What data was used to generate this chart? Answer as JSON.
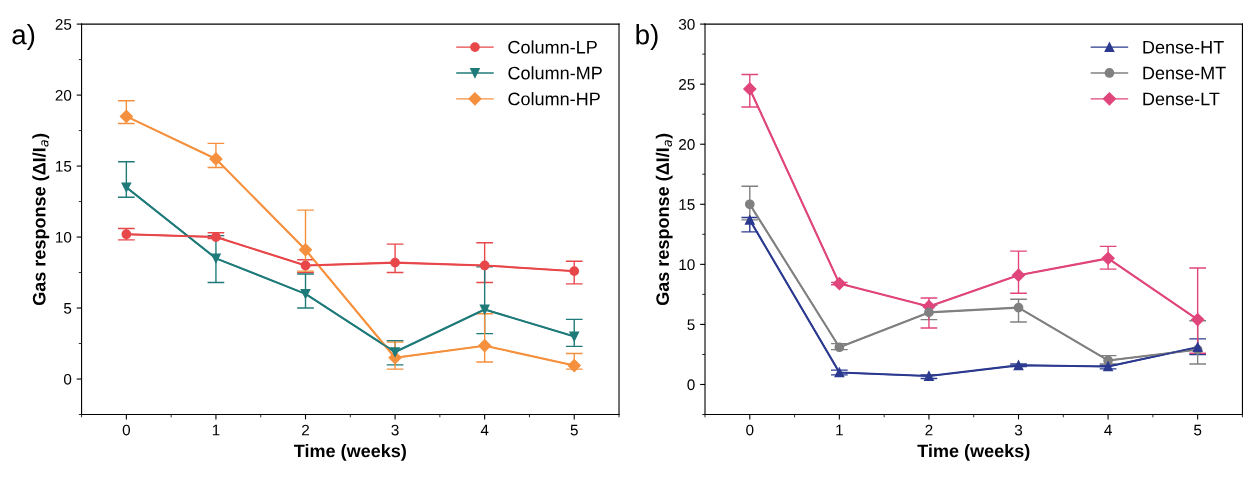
{
  "chart_data": [
    {
      "type": "line",
      "title": "a)",
      "xlabel": "Time (weeks)",
      "ylabel": "Gas response (ΔI/I$_{a}$)",
      "x": [
        0,
        1,
        2,
        3,
        4,
        5
      ],
      "xlim": [
        -0.5,
        5.5
      ],
      "xticks": [
        0,
        1,
        2,
        3,
        4,
        5
      ],
      "ylim": [
        -2.5,
        25
      ],
      "yticks": [
        0,
        5,
        10,
        15,
        20,
        25
      ],
      "legend": "top right",
      "grid": false,
      "series": [
        {
          "name": "Column-LP",
          "color": "#e8474a",
          "marker": "circle",
          "values": [
            10.2,
            10.0,
            8.0,
            8.2,
            8.0,
            7.6
          ],
          "errors": [
            [
              9.8,
              10.6
            ],
            [
              9.9,
              10.3
            ],
            [
              7.5,
              8.4
            ],
            [
              7.5,
              9.5
            ],
            [
              6.8,
              9.6
            ],
            [
              6.7,
              8.3
            ]
          ]
        },
        {
          "name": "Column-MP",
          "color": "#1f7a7a",
          "marker": "triangle_down",
          "values": [
            13.5,
            8.5,
            6.0,
            1.9,
            4.9,
            3.0
          ],
          "errors": [
            [
              12.8,
              15.3
            ],
            [
              6.8,
              10.1
            ],
            [
              5.0,
              7.4
            ],
            [
              1.0,
              2.7
            ],
            [
              3.2,
              7.9
            ],
            [
              2.3,
              4.2
            ]
          ]
        },
        {
          "name": "Column-HP",
          "color": "#f5913e",
          "marker": "diamond",
          "values": [
            18.5,
            15.5,
            9.1,
            1.5,
            2.35,
            0.95
          ],
          "errors": [
            [
              18.0,
              19.6
            ],
            [
              14.9,
              16.6
            ],
            [
              7.6,
              11.9
            ],
            [
              0.7,
              2.6
            ],
            [
              1.2,
              4.6
            ],
            [
              0.7,
              1.8
            ]
          ]
        }
      ]
    },
    {
      "type": "line",
      "title": "b)",
      "xlabel": "Time (weeks)",
      "ylabel": "Gas response (ΔI/I$_{a}$)",
      "x": [
        0,
        1,
        2,
        3,
        4,
        5
      ],
      "xlim": [
        -0.5,
        5.5
      ],
      "xticks": [
        0,
        1,
        2,
        3,
        4,
        5
      ],
      "ylim": [
        -2.5,
        30
      ],
      "yticks": [
        0,
        5,
        10,
        15,
        20,
        25,
        30
      ],
      "legend": "top right",
      "grid": false,
      "series": [
        {
          "name": "Dense-HT",
          "color": "#2b3a8f",
          "marker": "triangle",
          "values": [
            13.7,
            1.0,
            0.7,
            1.6,
            1.5,
            3.1
          ],
          "errors": [
            [
              12.7,
              13.9
            ],
            [
              0.8,
              1.2
            ],
            [
              0.5,
              0.8
            ],
            [
              1.5,
              1.7
            ],
            [
              1.3,
              1.6
            ],
            [
              2.5,
              3.8
            ]
          ]
        },
        {
          "name": "Dense-MT",
          "color": "#808080",
          "marker": "circle",
          "values": [
            15.0,
            3.1,
            6.0,
            6.4,
            2.0,
            2.9
          ],
          "errors": [
            [
              13.7,
              16.5
            ],
            [
              2.9,
              3.4
            ],
            [
              5.4,
              6.6
            ],
            [
              5.2,
              7.1
            ],
            [
              1.7,
              2.4
            ],
            [
              1.7,
              5.3
            ]
          ]
        },
        {
          "name": "Dense-LT",
          "color": "#e0457b",
          "marker": "diamond",
          "values": [
            24.6,
            8.4,
            6.5,
            9.1,
            10.5,
            5.4
          ],
          "errors": [
            [
              23.1,
              25.8
            ],
            [
              8.3,
              8.5
            ],
            [
              4.7,
              7.2
            ],
            [
              7.6,
              11.1
            ],
            [
              9.6,
              11.5
            ],
            [
              2.6,
              9.7
            ]
          ]
        }
      ]
    }
  ]
}
